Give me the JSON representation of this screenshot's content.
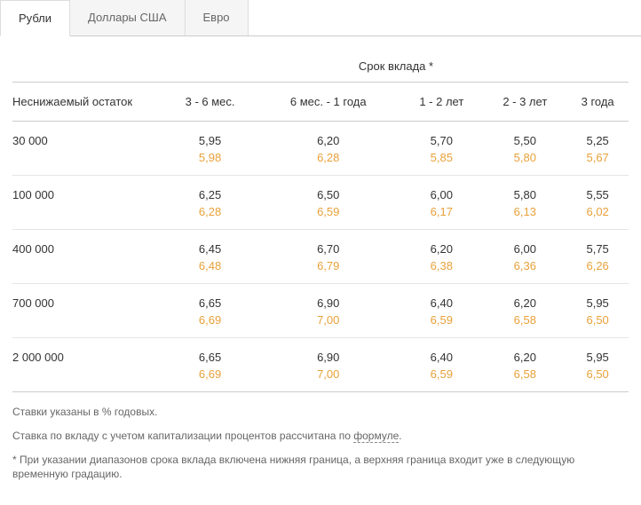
{
  "tabs": [
    {
      "label": "Рубли",
      "active": true
    },
    {
      "label": "Доллары США",
      "active": false
    },
    {
      "label": "Евро",
      "active": false
    }
  ],
  "table": {
    "super_header": "Срок вклада *",
    "row_header": "Неснижаемый остаток",
    "columns": [
      "3 - 6 мес.",
      "6 мес. - 1 года",
      "1 - 2 лет",
      "2 - 3 лет",
      "3 года"
    ],
    "rows": [
      {
        "label": "30 000",
        "primary": [
          "5,95",
          "6,20",
          "5,70",
          "5,50",
          "5,25"
        ],
        "secondary": [
          "5,98",
          "6,28",
          "5,85",
          "5,80",
          "5,67"
        ]
      },
      {
        "label": "100 000",
        "primary": [
          "6,25",
          "6,50",
          "6,00",
          "5,80",
          "5,55"
        ],
        "secondary": [
          "6,28",
          "6,59",
          "6,17",
          "6,13",
          "6,02"
        ]
      },
      {
        "label": "400 000",
        "primary": [
          "6,45",
          "6,70",
          "6,20",
          "6,00",
          "5,75"
        ],
        "secondary": [
          "6,48",
          "6,79",
          "6,38",
          "6,36",
          "6,26"
        ]
      },
      {
        "label": "700 000",
        "primary": [
          "6,65",
          "6,90",
          "6,40",
          "6,20",
          "5,95"
        ],
        "secondary": [
          "6,69",
          "7,00",
          "6,59",
          "6,58",
          "6,50"
        ]
      },
      {
        "label": "2 000 000",
        "primary": [
          "6,65",
          "6,90",
          "6,40",
          "6,20",
          "5,95"
        ],
        "secondary": [
          "6,69",
          "7,00",
          "6,59",
          "6,58",
          "6,50"
        ]
      }
    ]
  },
  "notes": {
    "line1": "Ставки указаны в % годовых.",
    "line2_pre": "Ставка по вкладу с учетом капитализации процентов рассчитана по ",
    "line2_link": "формуле",
    "line2_post": ".",
    "line3": "* При указании диапазонов срока вклада включена нижняя граница, а верхняя граница входит уже в следующую временную градацию."
  },
  "colors": {
    "secondary_text": "#e8a13a",
    "border": "#cccccc",
    "text": "#333333",
    "muted": "#666666"
  }
}
